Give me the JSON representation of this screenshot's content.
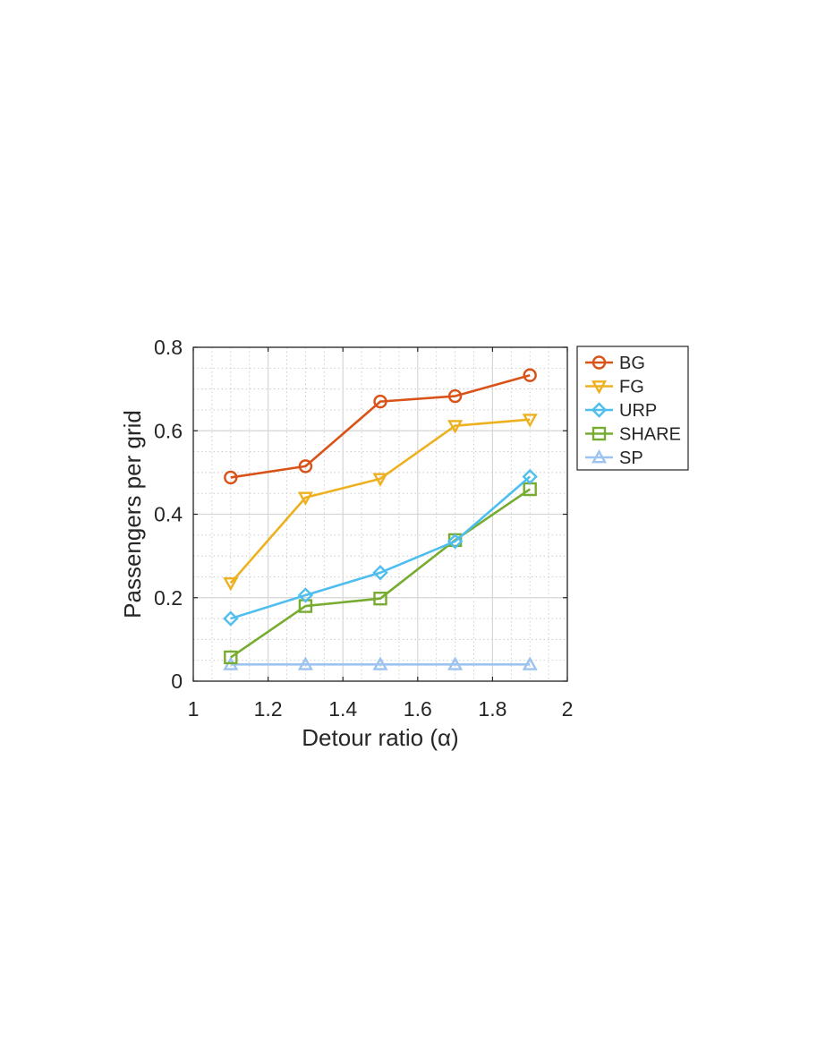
{
  "chart_data": {
    "type": "line",
    "xlabel": "Detour ratio (α)",
    "ylabel": "Passengers per grid",
    "xlim": [
      1,
      2
    ],
    "ylim": [
      0,
      0.8
    ],
    "xticks": [
      1,
      1.2,
      1.4,
      1.6,
      1.8,
      2
    ],
    "xtick_labels": [
      "1",
      "1.2",
      "1.4",
      "1.6",
      "1.8",
      "2"
    ],
    "yticks": [
      0,
      0.2,
      0.4,
      0.6,
      0.8
    ],
    "ytick_labels": [
      "0",
      "0.2",
      "0.4",
      "0.6",
      "0.8"
    ],
    "grid": true,
    "minor_grid": true,
    "legend_position": "outside-top-right",
    "x": [
      1.1,
      1.3,
      1.5,
      1.7,
      1.9
    ],
    "series": [
      {
        "name": "BG",
        "values": [
          0.488,
          0.515,
          0.67,
          0.683,
          0.733
        ],
        "color": "#D95319",
        "marker": "circle"
      },
      {
        "name": "FG",
        "values": [
          0.235,
          0.44,
          0.485,
          0.612,
          0.627
        ],
        "color": "#EDB120",
        "marker": "triangle-down"
      },
      {
        "name": "URP",
        "values": [
          0.15,
          0.206,
          0.26,
          0.335,
          0.49
        ],
        "color": "#4DBEEE",
        "marker": "diamond"
      },
      {
        "name": "SHARE",
        "values": [
          0.057,
          0.18,
          0.198,
          0.338,
          0.46
        ],
        "color": "#77AC30",
        "marker": "square"
      },
      {
        "name": "SP",
        "values": [
          0.04,
          0.04,
          0.04,
          0.04,
          0.04
        ],
        "color": "#9DC3F0",
        "marker": "triangle-up"
      }
    ]
  }
}
